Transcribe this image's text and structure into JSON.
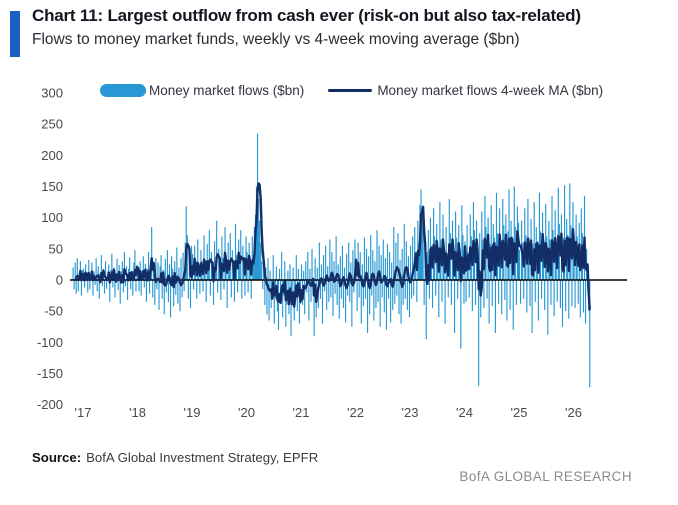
{
  "header": {
    "title": "Chart 11: Largest outflow from cash ever (risk-on but also tax-related)",
    "subtitle": "Flows to money market funds, weekly vs 4-week moving average ($bn)"
  },
  "legend": {
    "bars_label": "Money market flows ($bn)",
    "ma_label": "Money market flows 4-week MA ($bn)"
  },
  "footer": {
    "source_label": "Source:",
    "source_text": "BofA Global Investment Strategy, EPFR",
    "brand": "BofA GLOBAL RESEARCH"
  },
  "colors": {
    "accent_bar": "#1b5fc1",
    "bars": "#2798d4",
    "ma_line": "#132e66",
    "zero_line": "#000000",
    "axis_text": "#4a4a4e",
    "brand_text": "#8a8a90"
  },
  "chart_data": {
    "type": "bar",
    "title": "Flows to money market funds, weekly vs 4-week moving average ($bn)",
    "xlabel": "",
    "ylabel": "",
    "ylim": [
      -200,
      300
    ],
    "ytick_step": 50,
    "yticks": [
      300,
      250,
      200,
      150,
      100,
      50,
      0,
      -50,
      -100,
      -150,
      -200
    ],
    "xticks": [
      "'17",
      "'18",
      "'19",
      "'20",
      "'21",
      "'22",
      "'23",
      "'24",
      "'25",
      "'26"
    ],
    "grid": false,
    "legend_position": "top",
    "frequency": "weekly",
    "x_range": "late 2016 through April 2026",
    "series": [
      {
        "name": "Money market flows ($bn)",
        "type": "bar",
        "values": [
          20,
          -15,
          28,
          -22,
          35,
          -18,
          12,
          30,
          -25,
          16,
          18,
          -12,
          25,
          8,
          -20,
          32,
          -15,
          10,
          28,
          -25,
          14,
          -8,
          35,
          -18,
          22,
          -30,
          12,
          40,
          -10,
          18,
          -22,
          30,
          -14,
          8,
          25,
          -35,
          16,
          42,
          -12,
          20,
          -28,
          10,
          34,
          -16,
          24,
          -38,
          14,
          30,
          -20,
          45,
          -10,
          22,
          -32,
          18,
          36,
          -15,
          12,
          -25,
          28,
          48,
          -18,
          24,
          22,
          -18,
          30,
          -25,
          15,
          38,
          -12,
          26,
          -35,
          18,
          45,
          -22,
          32,
          85,
          -28,
          20,
          -40,
          35,
          -15,
          28,
          -48,
          22,
          40,
          -30,
          16,
          -55,
          34,
          -20,
          48,
          -35,
          25,
          -60,
          38,
          18,
          -42,
          30,
          -24,
          52,
          -38,
          20,
          -50,
          35,
          -28,
          44,
          -18,
          60,
          118,
          72,
          -30,
          38,
          -45,
          55,
          42,
          -15,
          55,
          20,
          -30,
          65,
          15,
          -22,
          48,
          30,
          -18,
          72,
          25,
          -35,
          58,
          18,
          80,
          -25,
          45,
          12,
          -40,
          62,
          28,
          95,
          -20,
          50,
          15,
          -32,
          70,
          35,
          -15,
          85,
          22,
          -45,
          60,
          30,
          75,
          -28,
          48,
          18,
          -35,
          90,
          40,
          -20,
          65,
          25,
          80,
          -30,
          55,
          35,
          -25,
          70,
          45,
          -20,
          60,
          25,
          -30,
          70,
          40,
          85,
          105,
          150,
          235,
          130,
          95,
          60,
          30,
          -15,
          45,
          -40,
          20,
          -55,
          35,
          -65,
          15,
          -45,
          -25,
          40,
          -70,
          -30,
          22,
          -50,
          -80,
          18,
          -35,
          45,
          -60,
          -25,
          30,
          -75,
          -40,
          15,
          -55,
          25,
          -90,
          -35,
          20,
          -65,
          -30,
          40,
          -50,
          18,
          -70,
          -38,
          25,
          -40,
          15,
          -55,
          30,
          -20,
          45,
          -65,
          18,
          -35,
          50,
          -25,
          -90,
          35,
          -60,
          20,
          -45,
          60,
          -30,
          25,
          -70,
          40,
          -18,
          55,
          -48,
          22,
          -35,
          65,
          -28,
          45,
          -58,
          30,
          -22,
          70,
          -40,
          25,
          -62,
          38,
          -30,
          55,
          -45,
          20,
          -68,
          42,
          -25,
          60,
          -35,
          28,
          -75,
          48,
          -20,
          65,
          35,
          -50,
          60,
          -28,
          45,
          -70,
          25,
          -42,
          68,
          -30,
          50,
          -85,
          38,
          -55,
          72,
          -25,
          48,
          -65,
          30,
          -45,
          80,
          -35,
          55,
          -75,
          40,
          -28,
          65,
          -52,
          35,
          -80,
          58,
          -30,
          45,
          -68,
          28,
          -48,
          85,
          -38,
          60,
          -25,
          75,
          -55,
          32,
          -70,
          50,
          -40,
          90,
          -30,
          62,
          -48,
          38,
          -60,
          55,
          -30,
          70,
          -25,
          85,
          40,
          -35,
          95,
          60,
          120,
          145,
          110,
          95,
          -40,
          65,
          -95,
          45,
          80,
          -30,
          100,
          55,
          -45,
          115,
          70,
          -25,
          90,
          48,
          -60,
          125,
          65,
          -35,
          105,
          50,
          -70,
          85,
          42,
          -28,
          130,
          75,
          -40,
          95,
          58,
          -85,
          110,
          68,
          -30,
          88,
          45,
          -110,
          120,
          72,
          -38,
          62,
          -35,
          88,
          45,
          -28,
          105,
          70,
          -50,
          125,
          80,
          -40,
          95,
          55,
          -170,
          75,
          -60,
          110,
          65,
          -45,
          135,
          85,
          -30,
          100,
          -70,
          58,
          120,
          -42,
          90,
          68,
          -85,
          140,
          75,
          -38,
          115,
          60,
          -55,
          130,
          88,
          -32,
          105,
          -65,
          78,
          145,
          -48,
          95,
          70,
          -80,
          150,
          85,
          -40,
          118,
          92,
          48,
          -38,
          95,
          60,
          -30,
          115,
          72,
          -52,
          130,
          68,
          -42,
          98,
          -85,
          58,
          125,
          -35,
          85,
          62,
          -65,
          140,
          78,
          -30,
          108,
          55,
          -48,
          122,
          70,
          -88,
          95,
          65,
          -40,
          135,
          80,
          -58,
          112,
          58,
          -35,
          148,
          90,
          -45,
          105,
          -75,
          68,
          152,
          -50,
          98,
          72,
          -62,
          155,
          88,
          -42,
          125,
          58,
          -45,
          105,
          70,
          -38,
          92,
          -60,
          115,
          75,
          -52,
          135,
          -70,
          50,
          -15,
          -50,
          -172
        ]
      },
      {
        "name": "Money market flows 4-week MA ($bn)",
        "type": "line",
        "derived_from": "trailing 4-week mean of the weekly bar series"
      }
    ]
  }
}
